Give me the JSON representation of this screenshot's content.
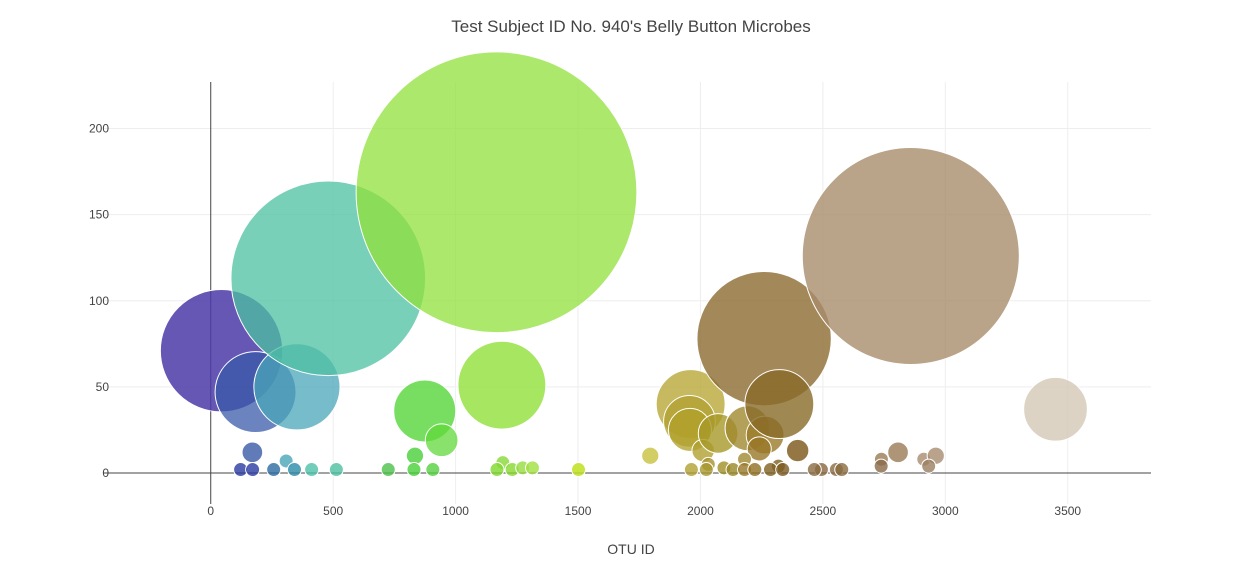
{
  "chart_data": {
    "type": "scatter",
    "subtype": "bubble",
    "title": "Test Subject ID No. 940's Belly Button Microbes",
    "xlabel": "OTU ID",
    "ylabel": "",
    "xlim": [
      -440,
      3840
    ],
    "ylim": [
      -18,
      227
    ],
    "x_ticks": [
      0,
      500,
      1000,
      1500,
      2000,
      2500,
      3000,
      3500
    ],
    "y_ticks": [
      0,
      50,
      100,
      150,
      200
    ],
    "grid": true,
    "legend": "none",
    "series": [
      {
        "points": [
          {
            "x": 44,
            "y": 71,
            "color": "#4b3aa8",
            "opacity": 0.85
          },
          {
            "x": 183,
            "y": 47,
            "color": "#3a5aa8",
            "opacity": 0.75
          },
          {
            "x": 352,
            "y": 50,
            "color": "#4aa5b8",
            "opacity": 0.75
          },
          {
            "x": 480,
            "y": 113,
            "color": "#4cc0a0",
            "opacity": 0.75
          },
          {
            "x": 170,
            "y": 12,
            "color": "#3a5aa8",
            "opacity": 0.8
          },
          {
            "x": 308,
            "y": 7,
            "color": "#4aa5b8",
            "opacity": 0.8
          },
          {
            "x": 122,
            "y": 2,
            "color": "#2a3aa0",
            "opacity": 0.8
          },
          {
            "x": 171,
            "y": 2,
            "color": "#2a3aa0",
            "opacity": 0.8
          },
          {
            "x": 257,
            "y": 2,
            "color": "#2a6aa0",
            "opacity": 0.8
          },
          {
            "x": 342,
            "y": 2,
            "color": "#2a8aa8",
            "opacity": 0.8
          },
          {
            "x": 412,
            "y": 2,
            "color": "#4cc0a8",
            "opacity": 0.8
          },
          {
            "x": 513,
            "y": 2,
            "color": "#4cc0a0",
            "opacity": 0.8
          },
          {
            "x": 874,
            "y": 36,
            "color": "#55d63a",
            "opacity": 0.8
          },
          {
            "x": 943,
            "y": 19,
            "color": "#60d83a",
            "opacity": 0.75
          },
          {
            "x": 834,
            "y": 10,
            "color": "#4ad03a",
            "opacity": 0.8
          },
          {
            "x": 725,
            "y": 2,
            "color": "#4cc04a",
            "opacity": 0.8
          },
          {
            "x": 830,
            "y": 2,
            "color": "#48d03a",
            "opacity": 0.8
          },
          {
            "x": 907,
            "y": 2,
            "color": "#55d040",
            "opacity": 0.8
          },
          {
            "x": 1167,
            "y": 163,
            "color": "#90e03a",
            "opacity": 0.75
          },
          {
            "x": 1189,
            "y": 51,
            "color": "#90e03a",
            "opacity": 0.8
          },
          {
            "x": 1193,
            "y": 6,
            "color": "#88d83a",
            "opacity": 0.8
          },
          {
            "x": 1169,
            "y": 2,
            "color": "#80d830",
            "opacity": 0.8
          },
          {
            "x": 1231,
            "y": 2,
            "color": "#88d830",
            "opacity": 0.8
          },
          {
            "x": 1274,
            "y": 3,
            "color": "#95dc40",
            "opacity": 0.8
          },
          {
            "x": 1314,
            "y": 3,
            "color": "#a0e040",
            "opacity": 0.8
          },
          {
            "x": 1502,
            "y": 2,
            "color": "#c0e020",
            "opacity": 0.85
          },
          {
            "x": 1795,
            "y": 10,
            "color": "#c8c040",
            "opacity": 0.8
          },
          {
            "x": 1960,
            "y": 40,
            "color": "#b8a838",
            "opacity": 0.8
          },
          {
            "x": 1955,
            "y": 30,
            "color": "#b0a030",
            "opacity": 0.75
          },
          {
            "x": 1957,
            "y": 25,
            "color": "#b0a028",
            "opacity": 0.75
          },
          {
            "x": 2011,
            "y": 13,
            "color": "#b0a030",
            "opacity": 0.8
          },
          {
            "x": 2072,
            "y": 23,
            "color": "#a89828",
            "opacity": 0.8
          },
          {
            "x": 2032,
            "y": 5,
            "color": "#a89030",
            "opacity": 0.8
          },
          {
            "x": 1963,
            "y": 2,
            "color": "#b0a030",
            "opacity": 0.8
          },
          {
            "x": 2024,
            "y": 2,
            "color": "#a89830",
            "opacity": 0.8
          },
          {
            "x": 2096,
            "y": 3,
            "color": "#a09028",
            "opacity": 0.8
          },
          {
            "x": 2133,
            "y": 2,
            "color": "#9a8828",
            "opacity": 0.8
          },
          {
            "x": 2192,
            "y": 26,
            "color": "#a08830",
            "opacity": 0.8
          },
          {
            "x": 2264,
            "y": 22,
            "color": "#9a7a28",
            "opacity": 0.8
          },
          {
            "x": 2240,
            "y": 14,
            "color": "#987828",
            "opacity": 0.8
          },
          {
            "x": 2180,
            "y": 8,
            "color": "#a08830",
            "opacity": 0.8
          },
          {
            "x": 2180,
            "y": 2,
            "color": "#987828",
            "opacity": 0.8
          },
          {
            "x": 2222,
            "y": 2,
            "color": "#907020",
            "opacity": 0.8
          },
          {
            "x": 2260,
            "y": 78,
            "color": "#8c6a30",
            "opacity": 0.8
          },
          {
            "x": 2322,
            "y": 40,
            "color": "#886a28",
            "opacity": 0.8
          },
          {
            "x": 2318,
            "y": 4,
            "color": "#806020",
            "opacity": 0.8
          },
          {
            "x": 2397,
            "y": 13,
            "color": "#7a5518",
            "opacity": 0.8
          },
          {
            "x": 2286,
            "y": 2,
            "color": "#806020",
            "opacity": 0.8
          },
          {
            "x": 2336,
            "y": 2,
            "color": "#7a5a20",
            "opacity": 0.8
          },
          {
            "x": 2494,
            "y": 2,
            "color": "#886840",
            "opacity": 0.8
          },
          {
            "x": 2465,
            "y": 2,
            "color": "#8a6a40",
            "opacity": 0.8
          },
          {
            "x": 2555,
            "y": 2,
            "color": "#8a6a40",
            "opacity": 0.8
          },
          {
            "x": 2577,
            "y": 2,
            "color": "#8a6a40",
            "opacity": 0.8
          },
          {
            "x": 2739,
            "y": 8,
            "color": "#9a7a55",
            "opacity": 0.8
          },
          {
            "x": 2807,
            "y": 12,
            "color": "#9a7a55",
            "opacity": 0.8
          },
          {
            "x": 2738,
            "y": 4,
            "color": "#8a6a48",
            "opacity": 0.8
          },
          {
            "x": 2859,
            "y": 126,
            "color": "#a88c6c",
            "opacity": 0.8
          },
          {
            "x": 2912,
            "y": 8,
            "color": "#a88c70",
            "opacity": 0.8
          },
          {
            "x": 2961,
            "y": 10,
            "color": "#a88c70",
            "opacity": 0.8
          },
          {
            "x": 2932,
            "y": 4,
            "color": "#9a7e60",
            "opacity": 0.8
          },
          {
            "x": 3450,
            "y": 37,
            "color": "#d4c8b6",
            "opacity": 0.8
          }
        ]
      }
    ]
  }
}
